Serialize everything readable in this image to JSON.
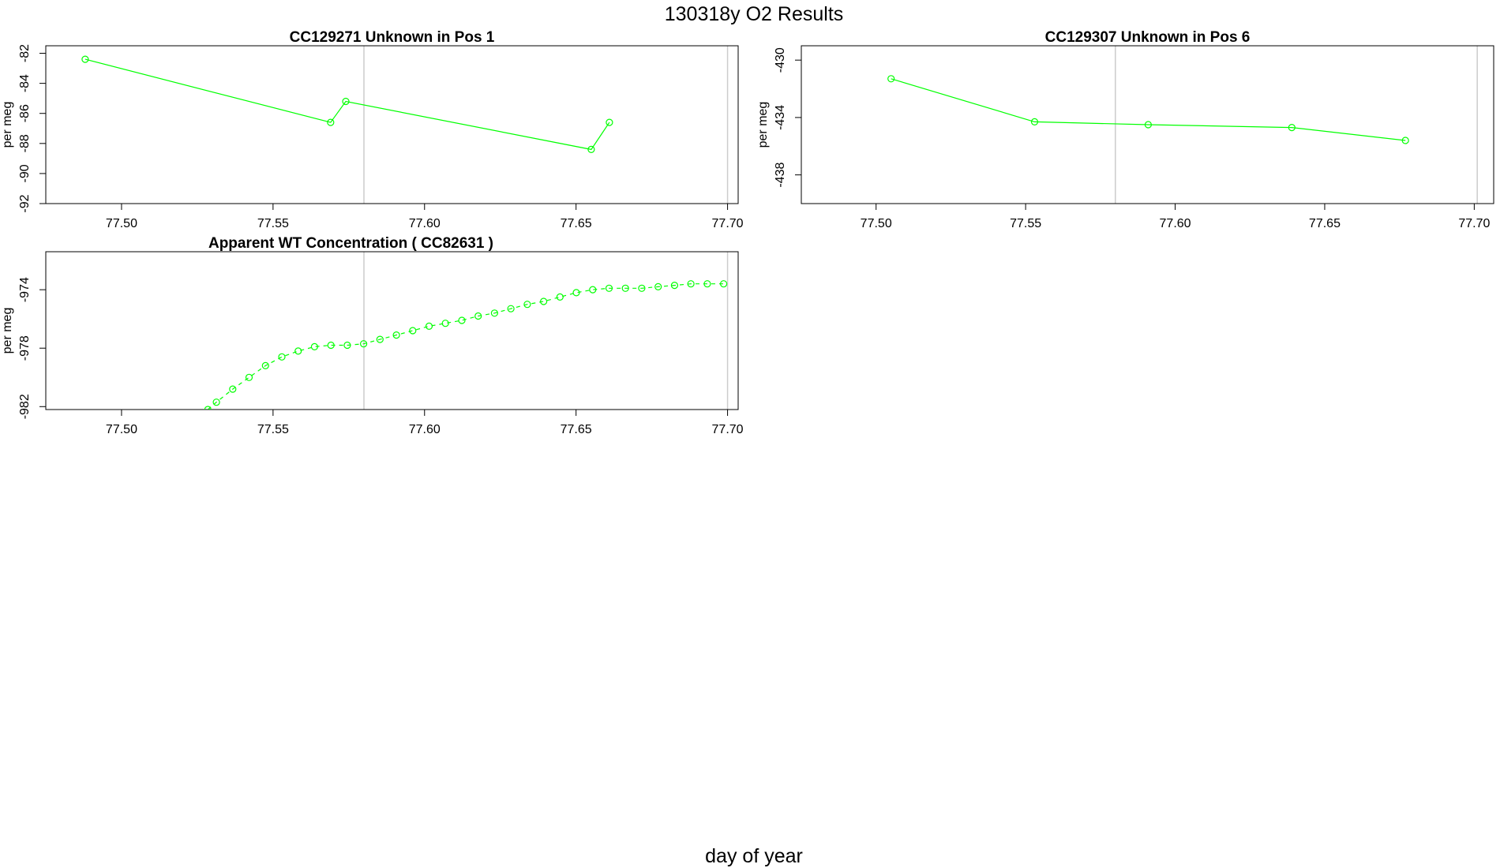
{
  "main_title": "130318y  O2 Results",
  "xlabel": "day of year",
  "colors": {
    "series": "#00ff00",
    "vline": "#cccccc",
    "frame": "#000000"
  },
  "chart_data": [
    {
      "type": "line",
      "title": "CC129271    Unknown in Pos 1",
      "ylabel": "per meg",
      "xlim": [
        77.475,
        77.7035
      ],
      "ylim": [
        -92,
        -81.5
      ],
      "y_reversed": true,
      "xticks": [
        77.5,
        77.55,
        77.6,
        77.65,
        77.7
      ],
      "xtick_labels": [
        "77.50",
        "77.55",
        "77.60",
        "77.65",
        "77.70"
      ],
      "yticks": [
        -82,
        -84,
        -86,
        -88,
        -90,
        -92
      ],
      "ytick_labels": [
        "-82",
        "-84",
        "-86",
        "-88",
        "-90",
        "-92"
      ],
      "vlines": [
        77.58,
        77.7
      ],
      "line_style": "solid",
      "series": [
        {
          "x": [
            77.488,
            77.569,
            77.574,
            77.655,
            77.661
          ],
          "y": [
            -82.4,
            -86.6,
            -85.2,
            -88.4,
            -86.6
          ]
        }
      ]
    },
    {
      "type": "line",
      "title": "CC129307    Unknown in Pos 6",
      "ylabel": "per meg",
      "xlim": [
        77.475,
        77.7065
      ],
      "ylim": [
        -440,
        -429
      ],
      "y_reversed": true,
      "xticks": [
        77.5,
        77.55,
        77.6,
        77.65,
        77.7
      ],
      "xtick_labels": [
        "77.50",
        "77.55",
        "77.60",
        "77.65",
        "77.70"
      ],
      "yticks": [
        -430,
        -434,
        -438
      ],
      "ytick_labels": [
        "-430",
        "-434",
        "-438"
      ],
      "vlines": [
        77.58,
        77.701
      ],
      "line_style": "solid",
      "series": [
        {
          "x": [
            77.505,
            77.553,
            77.591,
            77.639,
            77.677
          ],
          "y": [
            -431.3,
            -434.3,
            -434.5,
            -434.7,
            -435.6
          ]
        }
      ]
    },
    {
      "type": "line",
      "title": "Apparent WT Concentration ( CC82631 )",
      "ylabel": "per meg",
      "xlim": [
        77.475,
        77.7035
      ],
      "ylim": [
        -982.2,
        -971.4
      ],
      "y_reversed": true,
      "xticks": [
        77.5,
        77.55,
        77.6,
        77.65,
        77.7
      ],
      "xtick_labels": [
        "77.50",
        "77.55",
        "77.60",
        "77.65",
        "77.70"
      ],
      "yticks": [
        -974,
        -978,
        -982
      ],
      "ytick_labels": [
        "-974",
        "-978",
        "-982"
      ],
      "vlines": [
        77.58,
        77.7
      ],
      "line_style": "dashed",
      "series": [
        {
          "x": [
            77.5285,
            77.5313,
            77.5367,
            77.5421,
            77.5475,
            77.5529,
            77.5583,
            77.5637,
            77.5691,
            77.5745,
            77.5799,
            77.5853,
            77.5907,
            77.5961,
            77.6015,
            77.6069,
            77.6123,
            77.6177,
            77.6231,
            77.6285,
            77.6339,
            77.6393,
            77.6447,
            77.6501,
            77.6555,
            77.6609,
            77.6663,
            77.6717,
            77.6771,
            77.6825,
            77.6879,
            77.6933,
            77.6987
          ],
          "y": [
            -982.2,
            -981.7,
            -980.8,
            -980.0,
            -979.2,
            -978.6,
            -978.2,
            -977.9,
            -977.8,
            -977.8,
            -977.7,
            -977.4,
            -977.1,
            -976.8,
            -976.5,
            -976.3,
            -976.1,
            -975.8,
            -975.6,
            -975.3,
            -975.0,
            -974.8,
            -974.5,
            -974.2,
            -974.0,
            -973.9,
            -973.9,
            -973.9,
            -973.8,
            -973.7,
            -973.6,
            -973.6,
            -973.6
          ]
        }
      ]
    }
  ]
}
